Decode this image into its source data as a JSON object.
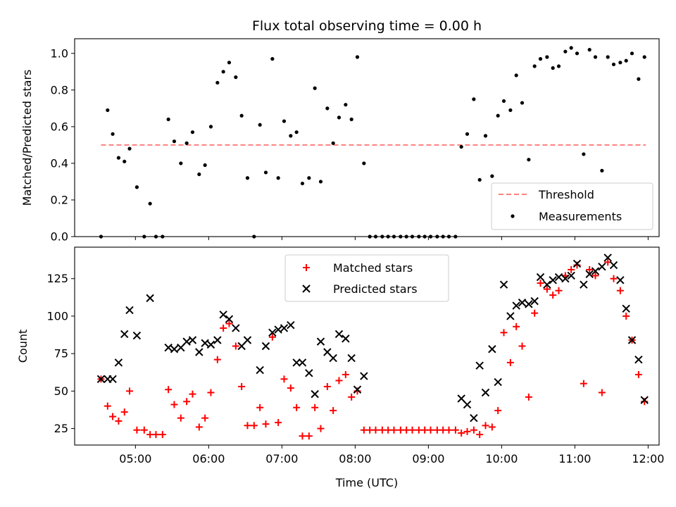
{
  "chart_data": [
    {
      "type": "scatter",
      "title": "Flux total observing time = 0.00 h",
      "xlabel": "",
      "ylabel": "Matched/Predicted stars",
      "ylim": [
        0.0,
        1.08
      ],
      "xlim_hours": [
        4.17,
        12.15
      ],
      "yticks": [
        "0.0",
        "0.2",
        "0.4",
        "0.6",
        "0.8",
        "1.0"
      ],
      "grid": false,
      "legend_position": "lower-right",
      "threshold": {
        "name": "Threshold",
        "value": 0.5,
        "x_start": 4.53,
        "x_end": 11.97,
        "color": "#ff7f7f",
        "style": "dashed"
      },
      "series": [
        {
          "name": "Measurements",
          "color": "#000000",
          "marker": "dot",
          "points": [
            [
              4.53,
              0.0
            ],
            [
              4.62,
              0.69
            ],
            [
              4.69,
              0.56
            ],
            [
              4.77,
              0.43
            ],
            [
              4.85,
              0.41
            ],
            [
              4.92,
              0.48
            ],
            [
              5.02,
              0.27
            ],
            [
              5.12,
              0.0
            ],
            [
              5.2,
              0.18
            ],
            [
              5.28,
              0.0
            ],
            [
              5.37,
              0.0
            ],
            [
              5.45,
              0.64
            ],
            [
              5.53,
              0.52
            ],
            [
              5.62,
              0.4
            ],
            [
              5.7,
              0.51
            ],
            [
              5.78,
              0.57
            ],
            [
              5.87,
              0.34
            ],
            [
              5.95,
              0.39
            ],
            [
              6.03,
              0.6
            ],
            [
              6.12,
              0.84
            ],
            [
              6.2,
              0.9
            ],
            [
              6.28,
              0.95
            ],
            [
              6.37,
              0.87
            ],
            [
              6.45,
              0.66
            ],
            [
              6.53,
              0.32
            ],
            [
              6.62,
              0.0
            ],
            [
              6.7,
              0.61
            ],
            [
              6.78,
              0.35
            ],
            [
              6.87,
              0.97
            ],
            [
              6.95,
              0.32
            ],
            [
              7.03,
              0.63
            ],
            [
              7.12,
              0.55
            ],
            [
              7.2,
              0.57
            ],
            [
              7.28,
              0.29
            ],
            [
              7.37,
              0.32
            ],
            [
              7.45,
              0.81
            ],
            [
              7.53,
              0.3
            ],
            [
              7.62,
              0.7
            ],
            [
              7.7,
              0.51
            ],
            [
              7.78,
              0.65
            ],
            [
              7.87,
              0.72
            ],
            [
              7.95,
              0.64
            ],
            [
              8.03,
              0.98
            ],
            [
              8.12,
              0.4
            ],
            [
              8.2,
              0.0
            ],
            [
              8.28,
              0.0
            ],
            [
              8.37,
              0.0
            ],
            [
              8.45,
              0.0
            ],
            [
              8.53,
              0.0
            ],
            [
              8.62,
              0.0
            ],
            [
              8.7,
              0.0
            ],
            [
              8.78,
              0.0
            ],
            [
              8.87,
              0.0
            ],
            [
              8.95,
              0.0
            ],
            [
              9.03,
              0.0
            ],
            [
              9.12,
              0.0
            ],
            [
              9.2,
              0.0
            ],
            [
              9.28,
              0.0
            ],
            [
              9.37,
              0.0
            ],
            [
              9.45,
              0.49
            ],
            [
              9.53,
              0.56
            ],
            [
              9.62,
              0.75
            ],
            [
              9.7,
              0.31
            ],
            [
              9.78,
              0.55
            ],
            [
              9.87,
              0.33
            ],
            [
              9.95,
              0.66
            ],
            [
              10.03,
              0.74
            ],
            [
              10.12,
              0.69
            ],
            [
              10.2,
              0.88
            ],
            [
              10.28,
              0.73
            ],
            [
              10.37,
              0.42
            ],
            [
              10.45,
              0.93
            ],
            [
              10.53,
              0.97
            ],
            [
              10.62,
              0.98
            ],
            [
              10.7,
              0.92
            ],
            [
              10.78,
              0.93
            ],
            [
              10.87,
              1.01
            ],
            [
              10.95,
              1.03
            ],
            [
              11.03,
              1.0
            ],
            [
              11.12,
              0.45
            ],
            [
              11.2,
              1.02
            ],
            [
              11.28,
              0.98
            ],
            [
              11.37,
              0.36
            ],
            [
              11.45,
              0.98
            ],
            [
              11.53,
              0.94
            ],
            [
              11.62,
              0.95
            ],
            [
              11.7,
              0.96
            ],
            [
              11.78,
              1.0
            ],
            [
              11.87,
              0.86
            ],
            [
              11.95,
              0.98
            ]
          ]
        }
      ]
    },
    {
      "type": "scatter",
      "title": "",
      "xlabel": "Time (UTC)",
      "ylabel": "Count",
      "ylim": [
        14,
        146
      ],
      "xlim_hours": [
        4.17,
        12.15
      ],
      "yticks": [
        "25",
        "50",
        "75",
        "100",
        "125"
      ],
      "xticks": [
        "05:00",
        "06:00",
        "07:00",
        "08:00",
        "09:00",
        "10:00",
        "11:00",
        "12:00"
      ],
      "grid": false,
      "legend_position": "upper-center",
      "series": [
        {
          "name": "Matched stars",
          "color": "#ff0000",
          "marker": "plus",
          "points": [
            [
              4.53,
              58
            ],
            [
              4.62,
              40
            ],
            [
              4.69,
              33
            ],
            [
              4.77,
              30
            ],
            [
              4.85,
              36
            ],
            [
              4.92,
              50
            ],
            [
              5.02,
              24
            ],
            [
              5.12,
              24
            ],
            [
              5.2,
              21
            ],
            [
              5.28,
              21
            ],
            [
              5.37,
              21
            ],
            [
              5.45,
              51
            ],
            [
              5.53,
              41
            ],
            [
              5.62,
              32
            ],
            [
              5.7,
              43
            ],
            [
              5.78,
              48
            ],
            [
              5.87,
              26
            ],
            [
              5.95,
              32
            ],
            [
              6.03,
              49
            ],
            [
              6.12,
              71
            ],
            [
              6.2,
              92
            ],
            [
              6.28,
              95
            ],
            [
              6.37,
              80
            ],
            [
              6.45,
              53
            ],
            [
              6.53,
              27
            ],
            [
              6.62,
              27
            ],
            [
              6.7,
              39
            ],
            [
              6.78,
              28
            ],
            [
              6.87,
              86
            ],
            [
              6.95,
              29
            ],
            [
              7.03,
              58
            ],
            [
              7.12,
              52
            ],
            [
              7.2,
              39
            ],
            [
              7.28,
              20
            ],
            [
              7.37,
              20
            ],
            [
              7.45,
              39
            ],
            [
              7.53,
              25
            ],
            [
              7.62,
              53
            ],
            [
              7.7,
              37
            ],
            [
              7.78,
              57
            ],
            [
              7.87,
              61
            ],
            [
              7.95,
              46
            ],
            [
              8.03,
              50
            ],
            [
              8.12,
              24
            ],
            [
              8.2,
              24
            ],
            [
              8.28,
              24
            ],
            [
              8.37,
              24
            ],
            [
              8.45,
              24
            ],
            [
              8.53,
              24
            ],
            [
              8.62,
              24
            ],
            [
              8.7,
              24
            ],
            [
              8.78,
              24
            ],
            [
              8.87,
              24
            ],
            [
              8.95,
              24
            ],
            [
              9.03,
              24
            ],
            [
              9.12,
              24
            ],
            [
              9.2,
              24
            ],
            [
              9.28,
              24
            ],
            [
              9.37,
              24
            ],
            [
              9.45,
              22
            ],
            [
              9.53,
              23
            ],
            [
              9.62,
              24
            ],
            [
              9.7,
              21
            ],
            [
              9.78,
              27
            ],
            [
              9.87,
              26
            ],
            [
              9.95,
              37
            ],
            [
              10.03,
              89
            ],
            [
              10.12,
              69
            ],
            [
              10.2,
              93
            ],
            [
              10.28,
              80
            ],
            [
              10.37,
              46
            ],
            [
              10.45,
              102
            ],
            [
              10.53,
              122
            ],
            [
              10.62,
              118
            ],
            [
              10.7,
              114
            ],
            [
              10.78,
              117
            ],
            [
              10.87,
              127
            ],
            [
              10.95,
              131
            ],
            [
              11.03,
              134
            ],
            [
              11.12,
              55
            ],
            [
              11.2,
              131
            ],
            [
              11.28,
              127
            ],
            [
              11.37,
              49
            ],
            [
              11.45,
              136
            ],
            [
              11.53,
              125
            ],
            [
              11.62,
              117
            ],
            [
              11.7,
              100
            ],
            [
              11.78,
              84
            ],
            [
              11.87,
              61
            ],
            [
              11.95,
              43
            ]
          ]
        },
        {
          "name": "Predicted stars",
          "color": "#000000",
          "marker": "x",
          "points": [
            [
              4.53,
              58
            ],
            [
              4.62,
              58
            ],
            [
              4.69,
              58
            ],
            [
              4.77,
              69
            ],
            [
              4.85,
              88
            ],
            [
              4.92,
              104
            ],
            [
              5.02,
              87
            ],
            [
              5.2,
              112
            ],
            [
              5.45,
              79
            ],
            [
              5.53,
              78
            ],
            [
              5.62,
              79
            ],
            [
              5.7,
              83
            ],
            [
              5.78,
              84
            ],
            [
              5.87,
              76
            ],
            [
              5.95,
              82
            ],
            [
              6.03,
              81
            ],
            [
              6.12,
              84
            ],
            [
              6.2,
              101
            ],
            [
              6.28,
              98
            ],
            [
              6.37,
              92
            ],
            [
              6.45,
              80
            ],
            [
              6.53,
              84
            ],
            [
              6.7,
              64
            ],
            [
              6.78,
              80
            ],
            [
              6.87,
              89
            ],
            [
              6.95,
              91
            ],
            [
              7.03,
              92
            ],
            [
              7.12,
              94
            ],
            [
              7.2,
              69
            ],
            [
              7.28,
              69
            ],
            [
              7.37,
              62
            ],
            [
              7.45,
              48
            ],
            [
              7.53,
              83
            ],
            [
              7.62,
              76
            ],
            [
              7.7,
              72
            ],
            [
              7.78,
              88
            ],
            [
              7.87,
              85
            ],
            [
              7.95,
              72
            ],
            [
              8.03,
              51
            ],
            [
              8.12,
              60
            ],
            [
              9.45,
              45
            ],
            [
              9.53,
              41
            ],
            [
              9.62,
              32
            ],
            [
              9.7,
              67
            ],
            [
              9.78,
              49
            ],
            [
              9.87,
              78
            ],
            [
              9.95,
              56
            ],
            [
              10.03,
              121
            ],
            [
              10.12,
              100
            ],
            [
              10.2,
              107
            ],
            [
              10.28,
              109
            ],
            [
              10.37,
              108
            ],
            [
              10.45,
              110
            ],
            [
              10.53,
              126
            ],
            [
              10.62,
              121
            ],
            [
              10.7,
              124
            ],
            [
              10.78,
              126
            ],
            [
              10.87,
              125
            ],
            [
              10.95,
              127
            ],
            [
              11.03,
              135
            ],
            [
              11.12,
              121
            ],
            [
              11.2,
              128
            ],
            [
              11.28,
              130
            ],
            [
              11.37,
              133
            ],
            [
              11.45,
              139
            ],
            [
              11.53,
              134
            ],
            [
              11.62,
              124
            ],
            [
              11.7,
              105
            ],
            [
              11.78,
              84
            ],
            [
              11.87,
              71
            ],
            [
              11.95,
              44
            ]
          ]
        }
      ]
    }
  ]
}
